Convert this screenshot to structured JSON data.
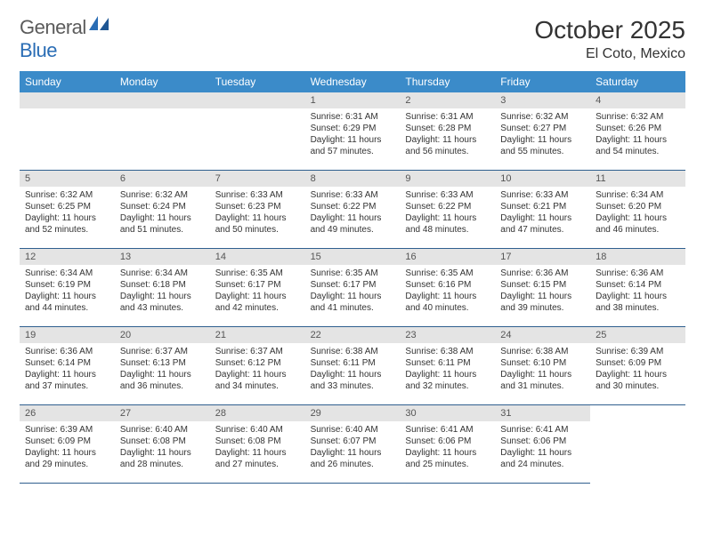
{
  "brand": {
    "part1": "General",
    "part2": "Blue"
  },
  "title": "October 2025",
  "location": "El Coto, Mexico",
  "colors": {
    "header_bg": "#3b8bc9",
    "header_text": "#ffffff",
    "daynum_bg": "#e4e4e4",
    "daynum_text": "#555555",
    "cell_border": "#2f5f8f",
    "body_text": "#333333",
    "logo_gray": "#5b5b5b",
    "logo_blue": "#2a6db5"
  },
  "fonts": {
    "title_size": 28,
    "subtitle_size": 16,
    "dayhead_size": 12,
    "daynum_size": 11,
    "info_size": 10
  },
  "day_headers": [
    "Sunday",
    "Monday",
    "Tuesday",
    "Wednesday",
    "Thursday",
    "Friday",
    "Saturday"
  ],
  "leading_blanks": 3,
  "days": [
    {
      "n": 1,
      "sunrise": "6:31 AM",
      "sunset": "6:29 PM",
      "daylight": "11 hours and 57 minutes."
    },
    {
      "n": 2,
      "sunrise": "6:31 AM",
      "sunset": "6:28 PM",
      "daylight": "11 hours and 56 minutes."
    },
    {
      "n": 3,
      "sunrise": "6:32 AM",
      "sunset": "6:27 PM",
      "daylight": "11 hours and 55 minutes."
    },
    {
      "n": 4,
      "sunrise": "6:32 AM",
      "sunset": "6:26 PM",
      "daylight": "11 hours and 54 minutes."
    },
    {
      "n": 5,
      "sunrise": "6:32 AM",
      "sunset": "6:25 PM",
      "daylight": "11 hours and 52 minutes."
    },
    {
      "n": 6,
      "sunrise": "6:32 AM",
      "sunset": "6:24 PM",
      "daylight": "11 hours and 51 minutes."
    },
    {
      "n": 7,
      "sunrise": "6:33 AM",
      "sunset": "6:23 PM",
      "daylight": "11 hours and 50 minutes."
    },
    {
      "n": 8,
      "sunrise": "6:33 AM",
      "sunset": "6:22 PM",
      "daylight": "11 hours and 49 minutes."
    },
    {
      "n": 9,
      "sunrise": "6:33 AM",
      "sunset": "6:22 PM",
      "daylight": "11 hours and 48 minutes."
    },
    {
      "n": 10,
      "sunrise": "6:33 AM",
      "sunset": "6:21 PM",
      "daylight": "11 hours and 47 minutes."
    },
    {
      "n": 11,
      "sunrise": "6:34 AM",
      "sunset": "6:20 PM",
      "daylight": "11 hours and 46 minutes."
    },
    {
      "n": 12,
      "sunrise": "6:34 AM",
      "sunset": "6:19 PM",
      "daylight": "11 hours and 44 minutes."
    },
    {
      "n": 13,
      "sunrise": "6:34 AM",
      "sunset": "6:18 PM",
      "daylight": "11 hours and 43 minutes."
    },
    {
      "n": 14,
      "sunrise": "6:35 AM",
      "sunset": "6:17 PM",
      "daylight": "11 hours and 42 minutes."
    },
    {
      "n": 15,
      "sunrise": "6:35 AM",
      "sunset": "6:17 PM",
      "daylight": "11 hours and 41 minutes."
    },
    {
      "n": 16,
      "sunrise": "6:35 AM",
      "sunset": "6:16 PM",
      "daylight": "11 hours and 40 minutes."
    },
    {
      "n": 17,
      "sunrise": "6:36 AM",
      "sunset": "6:15 PM",
      "daylight": "11 hours and 39 minutes."
    },
    {
      "n": 18,
      "sunrise": "6:36 AM",
      "sunset": "6:14 PM",
      "daylight": "11 hours and 38 minutes."
    },
    {
      "n": 19,
      "sunrise": "6:36 AM",
      "sunset": "6:14 PM",
      "daylight": "11 hours and 37 minutes."
    },
    {
      "n": 20,
      "sunrise": "6:37 AM",
      "sunset": "6:13 PM",
      "daylight": "11 hours and 36 minutes."
    },
    {
      "n": 21,
      "sunrise": "6:37 AM",
      "sunset": "6:12 PM",
      "daylight": "11 hours and 34 minutes."
    },
    {
      "n": 22,
      "sunrise": "6:38 AM",
      "sunset": "6:11 PM",
      "daylight": "11 hours and 33 minutes."
    },
    {
      "n": 23,
      "sunrise": "6:38 AM",
      "sunset": "6:11 PM",
      "daylight": "11 hours and 32 minutes."
    },
    {
      "n": 24,
      "sunrise": "6:38 AM",
      "sunset": "6:10 PM",
      "daylight": "11 hours and 31 minutes."
    },
    {
      "n": 25,
      "sunrise": "6:39 AM",
      "sunset": "6:09 PM",
      "daylight": "11 hours and 30 minutes."
    },
    {
      "n": 26,
      "sunrise": "6:39 AM",
      "sunset": "6:09 PM",
      "daylight": "11 hours and 29 minutes."
    },
    {
      "n": 27,
      "sunrise": "6:40 AM",
      "sunset": "6:08 PM",
      "daylight": "11 hours and 28 minutes."
    },
    {
      "n": 28,
      "sunrise": "6:40 AM",
      "sunset": "6:08 PM",
      "daylight": "11 hours and 27 minutes."
    },
    {
      "n": 29,
      "sunrise": "6:40 AM",
      "sunset": "6:07 PM",
      "daylight": "11 hours and 26 minutes."
    },
    {
      "n": 30,
      "sunrise": "6:41 AM",
      "sunset": "6:06 PM",
      "daylight": "11 hours and 25 minutes."
    },
    {
      "n": 31,
      "sunrise": "6:41 AM",
      "sunset": "6:06 PM",
      "daylight": "11 hours and 24 minutes."
    }
  ],
  "labels": {
    "sunrise": "Sunrise:",
    "sunset": "Sunset:",
    "daylight": "Daylight:"
  }
}
